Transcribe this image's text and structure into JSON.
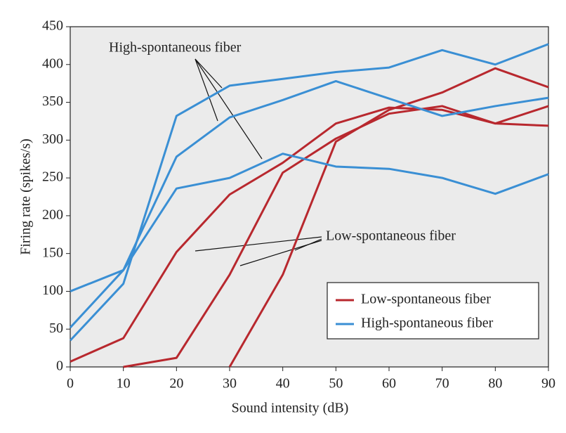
{
  "chart_data": {
    "type": "line",
    "x_label": "Sound intensity (dB)",
    "y_label": "Firing rate (spikes/s)",
    "x": [
      0,
      10,
      20,
      30,
      40,
      50,
      60,
      70,
      80,
      90
    ],
    "xlim": [
      0,
      90
    ],
    "xticks": [
      0,
      10,
      20,
      30,
      40,
      50,
      60,
      70,
      80,
      90
    ],
    "ylim": [
      0,
      450
    ],
    "yticks": [
      0,
      50,
      100,
      150,
      200,
      250,
      300,
      350,
      400,
      450
    ],
    "legend_position": "lower right",
    "annotations": [
      "High-spontaneous fiber",
      "Low-spontaneous fiber"
    ],
    "series": [
      {
        "name": "Low-spontaneous fiber",
        "color": "#b8282e",
        "values": [
          7,
          38,
          152,
          228,
          270,
          322,
          343,
          340,
          322,
          345
        ]
      },
      {
        "name": "Low-spontaneous fiber",
        "color": "#b8282e",
        "values": [
          null,
          0,
          12,
          122,
          257,
          302,
          335,
          345,
          322,
          319
        ]
      },
      {
        "name": "Low-spontaneous fiber",
        "color": "#b8282e",
        "values": [
          null,
          null,
          null,
          0,
          122,
          298,
          340,
          363,
          395,
          370
        ]
      },
      {
        "name": "High-spontaneous fiber",
        "color": "#3a8fd4",
        "values": [
          35,
          110,
          332,
          372,
          381,
          390,
          396,
          419,
          400,
          427
        ]
      },
      {
        "name": "High-spontaneous fiber",
        "color": "#3a8fd4",
        "values": [
          52,
          128,
          278,
          330,
          353,
          378,
          355,
          332,
          345,
          356
        ]
      },
      {
        "name": "High-spontaneous fiber",
        "color": "#3a8fd4",
        "values": [
          100,
          128,
          236,
          250,
          282,
          265,
          262,
          250,
          229,
          255
        ]
      }
    ]
  }
}
